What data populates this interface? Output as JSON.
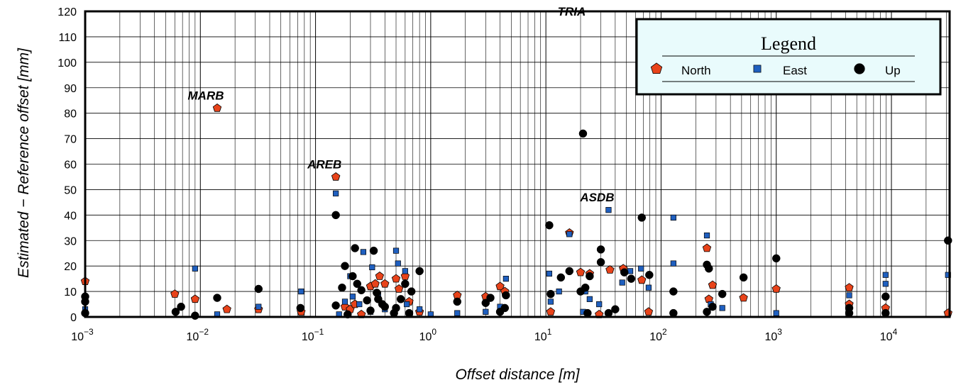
{
  "chart_data": {
    "type": "scatter",
    "xlabel": "Offset distance [m]",
    "ylabel": "Estimated − Reference offset [mm]",
    "xscale": "log",
    "xlim": [
      0.001,
      32000
    ],
    "ylim": [
      0,
      120
    ],
    "grid": true,
    "legend_position": "top-right",
    "legend_title": "Legend",
    "x_ticks": [
      {
        "value": 0.001,
        "base": "10",
        "exp": "−3"
      },
      {
        "value": 0.01,
        "base": "10",
        "exp": "−2"
      },
      {
        "value": 0.1,
        "base": "10",
        "exp": "−1"
      },
      {
        "value": 1,
        "base": "10",
        "exp": "0"
      },
      {
        "value": 10,
        "base": "10",
        "exp": "1"
      },
      {
        "value": 100,
        "base": "10",
        "exp": "2"
      },
      {
        "value": 1000,
        "base": "10",
        "exp": "3"
      },
      {
        "value": 10000,
        "base": "10",
        "exp": "4"
      }
    ],
    "y_ticks": [
      0,
      10,
      20,
      30,
      40,
      50,
      60,
      70,
      80,
      90,
      100,
      110,
      120
    ],
    "annotations": [
      {
        "text": "MARB",
        "x": 0.014,
        "y": 82
      },
      {
        "text": "AREB",
        "x": 0.15,
        "y": 55
      },
      {
        "text": "TRIA",
        "x": 21,
        "y": 115
      },
      {
        "text": "ASDB",
        "x": 35,
        "y": 42
      }
    ],
    "series": [
      {
        "name": "North",
        "marker": "pentagon",
        "color": "#e8431a",
        "points": [
          [
            0.001,
            14
          ],
          [
            0.006,
            9
          ],
          [
            0.009,
            7
          ],
          [
            0.014,
            82
          ],
          [
            0.017,
            3
          ],
          [
            0.032,
            3
          ],
          [
            0.075,
            2
          ],
          [
            0.15,
            55
          ],
          [
            0.18,
            4
          ],
          [
            0.2,
            3
          ],
          [
            0.22,
            5
          ],
          [
            0.25,
            1
          ],
          [
            0.3,
            12
          ],
          [
            0.33,
            13
          ],
          [
            0.36,
            16
          ],
          [
            0.4,
            13
          ],
          [
            0.5,
            15
          ],
          [
            0.53,
            11
          ],
          [
            0.6,
            16
          ],
          [
            0.65,
            6
          ],
          [
            0.8,
            2
          ],
          [
            1.7,
            8.5
          ],
          [
            3,
            8
          ],
          [
            4,
            12
          ],
          [
            4.4,
            10
          ],
          [
            11,
            2
          ],
          [
            16,
            33
          ],
          [
            20,
            17.5
          ],
          [
            24,
            17
          ],
          [
            29,
            1
          ],
          [
            36,
            18.5
          ],
          [
            47,
            19
          ],
          [
            68,
            14.5
          ],
          [
            78,
            2
          ],
          [
            250,
            27
          ],
          [
            260,
            7
          ],
          [
            280,
            12.5
          ],
          [
            520,
            7.5
          ],
          [
            1000,
            11
          ],
          [
            4300,
            11.5
          ],
          [
            4300,
            5
          ],
          [
            8900,
            3.5
          ],
          [
            31000,
            1.5
          ]
        ]
      },
      {
        "name": "East",
        "marker": "square",
        "color": "#1f5fbf",
        "points": [
          [
            0.001,
            3
          ],
          [
            0.009,
            19
          ],
          [
            0.014,
            1
          ],
          [
            0.032,
            4
          ],
          [
            0.075,
            10
          ],
          [
            0.15,
            48.5
          ],
          [
            0.16,
            1
          ],
          [
            0.18,
            6
          ],
          [
            0.2,
            16
          ],
          [
            0.21,
            8
          ],
          [
            0.24,
            5
          ],
          [
            0.26,
            25.5
          ],
          [
            0.3,
            2
          ],
          [
            0.31,
            19.5
          ],
          [
            0.35,
            9
          ],
          [
            0.4,
            3
          ],
          [
            0.5,
            26
          ],
          [
            0.52,
            21
          ],
          [
            0.6,
            18
          ],
          [
            0.62,
            5
          ],
          [
            0.8,
            3
          ],
          [
            1,
            1
          ],
          [
            1.7,
            1.5
          ],
          [
            3,
            2
          ],
          [
            4,
            4
          ],
          [
            4.5,
            15
          ],
          [
            10.7,
            17
          ],
          [
            11,
            6
          ],
          [
            13,
            10
          ],
          [
            16,
            32.5
          ],
          [
            21,
            2
          ],
          [
            22,
            10
          ],
          [
            24,
            7
          ],
          [
            29,
            5
          ],
          [
            35,
            42
          ],
          [
            46,
            13.5
          ],
          [
            54,
            18
          ],
          [
            67,
            19
          ],
          [
            78,
            11.5
          ],
          [
            128,
            39
          ],
          [
            128,
            21
          ],
          [
            250,
            32
          ],
          [
            270,
            5
          ],
          [
            340,
            3.5
          ],
          [
            520,
            15.5
          ],
          [
            1000,
            1.5
          ],
          [
            4300,
            8.5
          ],
          [
            8900,
            16.5
          ],
          [
            8900,
            13
          ],
          [
            31000,
            16.5
          ]
        ]
      },
      {
        "name": "Up",
        "marker": "circle",
        "color": "#000000",
        "points": [
          [
            0.001,
            8
          ],
          [
            0.001,
            6
          ],
          [
            0.001,
            1.5
          ],
          [
            0.0061,
            2
          ],
          [
            0.0068,
            4
          ],
          [
            0.009,
            0.5
          ],
          [
            0.014,
            7.5
          ],
          [
            0.032,
            11
          ],
          [
            0.074,
            3.5
          ],
          [
            0.15,
            40
          ],
          [
            0.15,
            4.5
          ],
          [
            0.17,
            11.5
          ],
          [
            0.18,
            20
          ],
          [
            0.19,
            1
          ],
          [
            0.21,
            16
          ],
          [
            0.22,
            27
          ],
          [
            0.23,
            13
          ],
          [
            0.25,
            10.5
          ],
          [
            0.28,
            6.5
          ],
          [
            0.3,
            2.5
          ],
          [
            0.32,
            26
          ],
          [
            0.34,
            9.5
          ],
          [
            0.35,
            7
          ],
          [
            0.38,
            5
          ],
          [
            0.4,
            4
          ],
          [
            0.48,
            1.5
          ],
          [
            0.5,
            3.5
          ],
          [
            0.55,
            7
          ],
          [
            0.6,
            13
          ],
          [
            0.65,
            1.5
          ],
          [
            0.68,
            10
          ],
          [
            0.8,
            18
          ],
          [
            1.7,
            6
          ],
          [
            3,
            5.5
          ],
          [
            3.3,
            7.5
          ],
          [
            4,
            2
          ],
          [
            4.4,
            3.5
          ],
          [
            4.5,
            8.5
          ],
          [
            10.7,
            36
          ],
          [
            11,
            9
          ],
          [
            13.5,
            15.5
          ],
          [
            16,
            18
          ],
          [
            20,
            10
          ],
          [
            21,
            72
          ],
          [
            22,
            11.5
          ],
          [
            23,
            1.5
          ],
          [
            24,
            16
          ],
          [
            30,
            26.5
          ],
          [
            30,
            21.5
          ],
          [
            35,
            1.5
          ],
          [
            40,
            3
          ],
          [
            48,
            17.5
          ],
          [
            55,
            15
          ],
          [
            68,
            39
          ],
          [
            79,
            16.5
          ],
          [
            128,
            10
          ],
          [
            128,
            1.5
          ],
          [
            250,
            20.5
          ],
          [
            250,
            2
          ],
          [
            260,
            19
          ],
          [
            280,
            4
          ],
          [
            340,
            9
          ],
          [
            520,
            15.5
          ],
          [
            1000,
            23
          ],
          [
            4300,
            3.5
          ],
          [
            4300,
            1.5
          ],
          [
            8900,
            8
          ],
          [
            8900,
            1.5
          ],
          [
            31000,
            30
          ]
        ]
      }
    ]
  }
}
